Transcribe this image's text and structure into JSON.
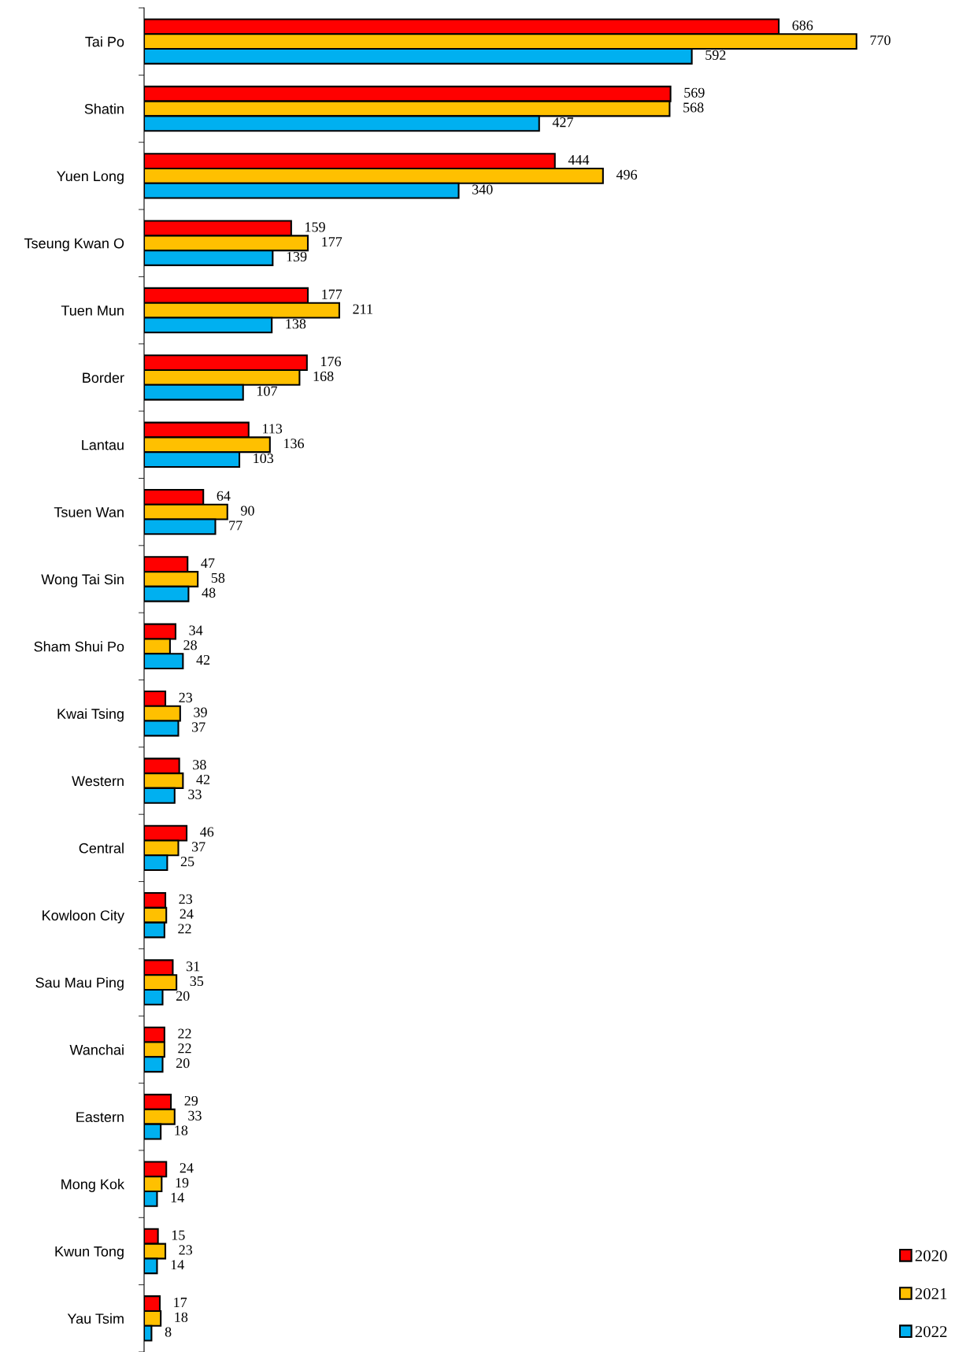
{
  "chart_data": {
    "type": "bar",
    "orientation": "horizontal",
    "data_labels": true,
    "legend": "bottom right",
    "grid": false,
    "categories": [
      "Tai Po",
      "Shatin",
      "Yuen Long",
      "Tseung Kwan O",
      "Tuen Mun",
      "Border",
      "Lantau",
      "Tsuen Wan",
      "Wong Tai Sin",
      "Sham Shui Po",
      "Kwai Tsing",
      "Western",
      "Central",
      "Kowloon City",
      "Sau Mau Ping",
      "Wanchai",
      "Eastern",
      "Mong Kok",
      "Kwun Tong",
      "Yau Tsim"
    ],
    "series": [
      {
        "name": "2020",
        "color": "#ff0000",
        "values": [
          686,
          569,
          444,
          159,
          177,
          176,
          113,
          64,
          47,
          34,
          23,
          38,
          46,
          23,
          31,
          22,
          29,
          24,
          15,
          17
        ]
      },
      {
        "name": "2021",
        "color": "#ffc000",
        "values": [
          770,
          568,
          496,
          177,
          211,
          168,
          136,
          90,
          58,
          28,
          39,
          42,
          37,
          24,
          35,
          22,
          33,
          19,
          23,
          18
        ]
      },
      {
        "name": "2022",
        "color": "#00b0f0",
        "values": [
          592,
          427,
          340,
          139,
          138,
          107,
          103,
          77,
          48,
          42,
          37,
          33,
          25,
          22,
          20,
          20,
          18,
          14,
          14,
          8
        ]
      }
    ]
  }
}
